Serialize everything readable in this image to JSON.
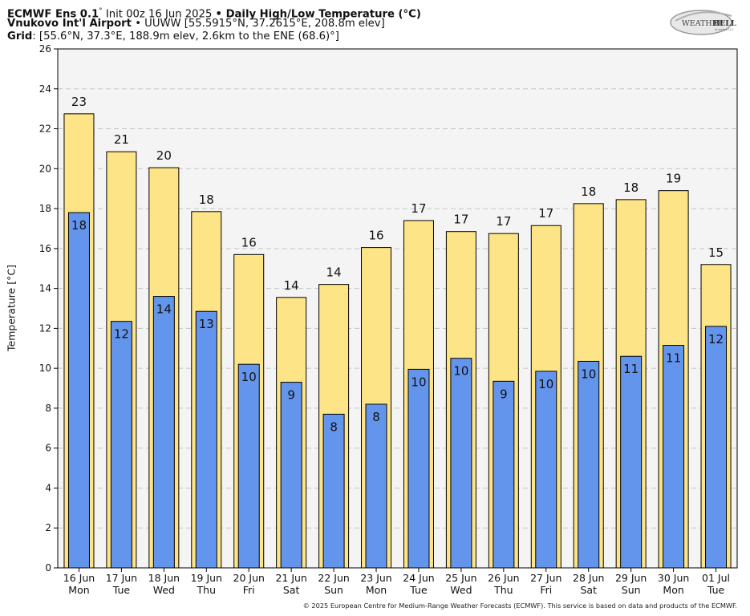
{
  "header": {
    "line1_model": "ECMWF Ens 0.1",
    "line1_deg": "°",
    "line1_init": " Init 00z 16 Jun 2025 ",
    "line1_bullet": "•",
    "line1_title": " Daily High/Low Temperature (°C)",
    "line2_station": "Vnukovo Int'l Airport",
    "line2_rest": " • UUWW [55.5915°N, 37.2615°E, 208.8m elev]",
    "line3_label": "Grid",
    "line3_rest": ": [55.6°N, 37.3°E, 188.9m elev, 2.6km to the ENE (68.6)°]"
  },
  "logo": {
    "text_top": "WEATHER",
    "text_bold": "BELL",
    "tagline": "Analytics LLC"
  },
  "copyright": "© 2025 European Centre for Medium-Range Weather Forecasts (ECMWF). This service is based on data and products of the ECMWF.",
  "chart_data": {
    "type": "bar",
    "ylabel": "Temperature [°C]",
    "ylim": [
      0,
      26
    ],
    "yticks": [
      0,
      2,
      4,
      6,
      8,
      10,
      12,
      14,
      16,
      18,
      20,
      22,
      24,
      26
    ],
    "grid": true,
    "categories": [
      "16 Jun",
      "17 Jun",
      "18 Jun",
      "19 Jun",
      "20 Jun",
      "21 Jun",
      "22 Jun",
      "23 Jun",
      "24 Jun",
      "25 Jun",
      "26 Jun",
      "27 Jun",
      "28 Jun",
      "29 Jun",
      "30 Jun",
      "01 Jul"
    ],
    "weekdays": [
      "Mon",
      "Tue",
      "Wed",
      "Thu",
      "Fri",
      "Sat",
      "Sun",
      "Mon",
      "Tue",
      "Wed",
      "Thu",
      "Fri",
      "Sat",
      "Sun",
      "Mon",
      "Tue"
    ],
    "series": [
      {
        "values": [
          22.75,
          20.85,
          20.05,
          17.85,
          15.7,
          13.55,
          14.2,
          16.05,
          17.4,
          16.85,
          16.75,
          17.15,
          18.25,
          18.45,
          18.9,
          15.2
        ],
        "labels": [
          "23",
          "21",
          "20",
          "18",
          "16",
          "14",
          "14",
          "16",
          "17",
          "17",
          "17",
          "17",
          "18",
          "18",
          "19",
          "15"
        ],
        "color": "#fde487"
      },
      {
        "values": [
          17.8,
          12.35,
          13.6,
          12.85,
          10.2,
          9.3,
          7.7,
          8.2,
          9.95,
          10.5,
          9.35,
          9.85,
          10.35,
          10.6,
          11.15,
          12.1
        ],
        "labels": [
          "18",
          "12",
          "14",
          "13",
          "10",
          "9",
          "8",
          "8",
          "10",
          "10",
          "9",
          "10",
          "10",
          "11",
          "11",
          "12"
        ],
        "color": "#6495ed"
      }
    ]
  }
}
